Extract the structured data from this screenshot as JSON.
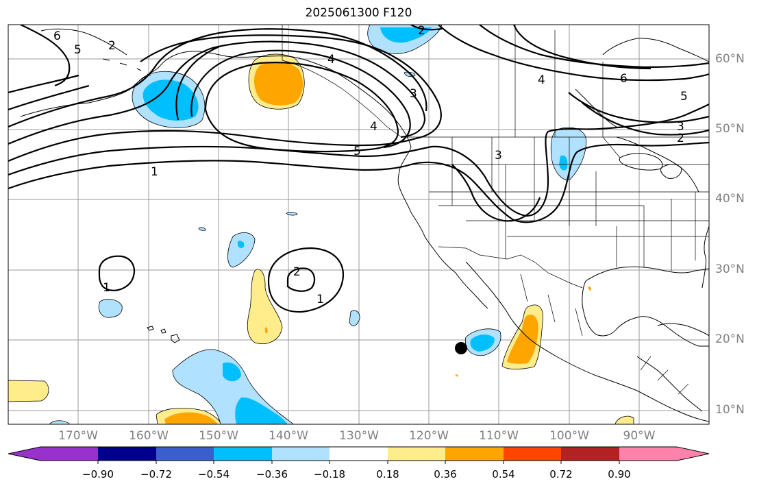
{
  "title": "2025061300 F120",
  "lat_labels": [
    "60°N",
    "50°N",
    "40°N",
    "30°N",
    "20°N",
    "10°N"
  ],
  "lon_labels": [
    "170°W",
    "160°W",
    "150°W",
    "140°W",
    "130°W",
    "120°W",
    "110°W",
    "100°W",
    "90°W"
  ],
  "contour_labels": [
    "6",
    "5",
    "4",
    "3",
    "2",
    "1",
    "1",
    "1",
    "2",
    "6",
    "5",
    "4",
    "3",
    "2",
    "3",
    "5",
    "4",
    "2"
  ],
  "colorbar": {
    "labels": [
      "−0.90",
      "−0.72",
      "−0.54",
      "−0.36",
      "−0.18",
      "0.18",
      "0.36",
      "0.54",
      "0.72",
      "0.90"
    ],
    "colors": [
      "#9932cc",
      "#00008b",
      "#3a5fcd",
      "#00bfff",
      "#b0e2ff",
      "#ffffff",
      "#ffec8b",
      "#ffa500",
      "#ff4500",
      "#b22222",
      "#ff82ab"
    ]
  },
  "fill_colors": {
    "neg_light": "#b0e2ff",
    "neg_mid": "#00bfff",
    "pos_light": "#ffec8b",
    "pos_mid": "#ffa500"
  },
  "marker": {
    "symbol": "storm-position-dot",
    "color": "#000000"
  }
}
